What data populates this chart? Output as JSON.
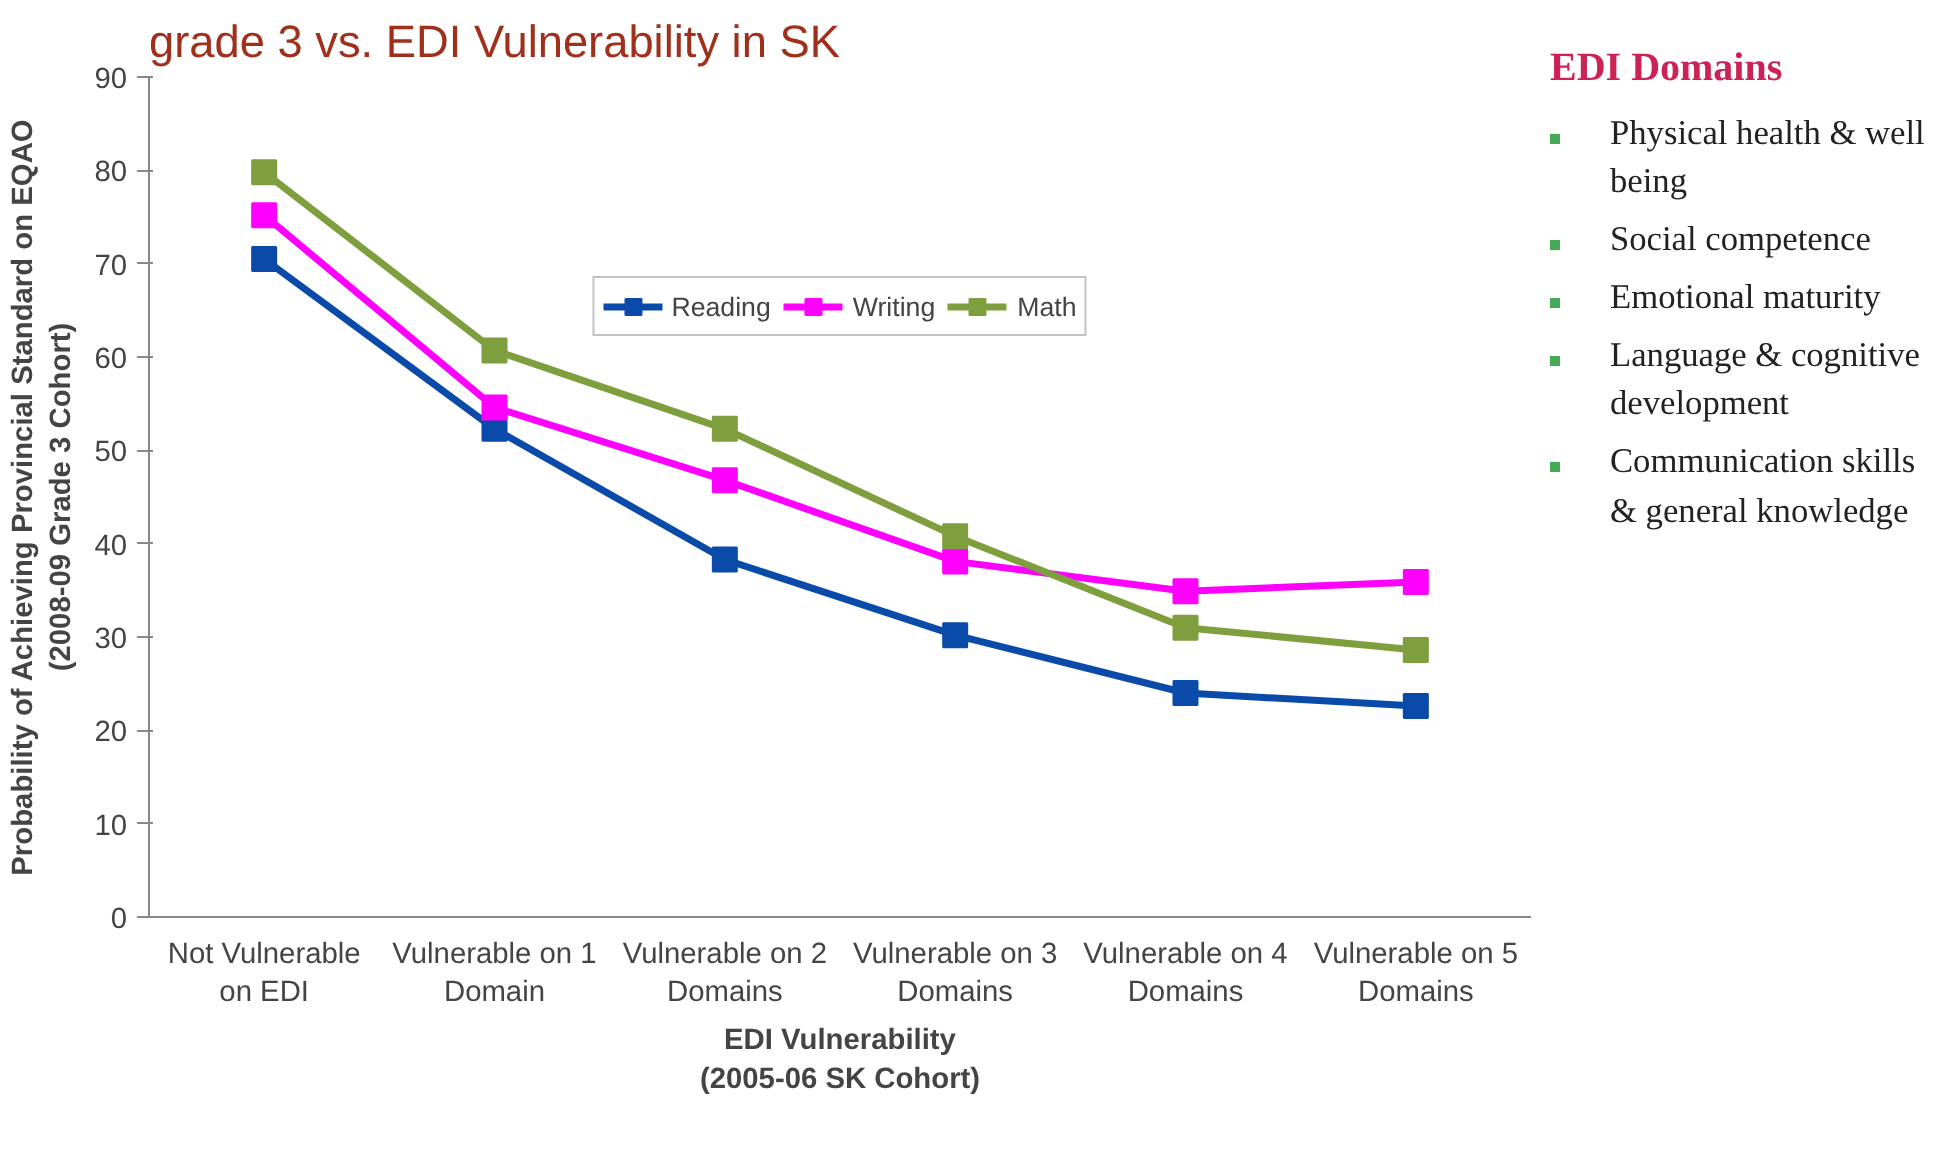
{
  "chart_data": {
    "type": "line",
    "title": "grade 3 vs. EDI Vulnerability in SK",
    "xlabel": "EDI Vulnerability (2005-06 SK Cohort)",
    "ylabel": "Probability of Achieving Provincial Standard on EQAO (2008-09 Grade 3 Cohort)",
    "categories": [
      "Not Vulnerable on EDI",
      "Vulnerable on 1 Domain",
      "Vulnerable on 2 Domains",
      "Vulnerable on 3 Domains",
      "Vulnerable on 4 Domains",
      "Vulnerable on 5 Domains"
    ],
    "series": [
      {
        "name": "Reading",
        "color": "#0a4aa8",
        "values": [
          70.5,
          52.3,
          38.3,
          30.2,
          24.0,
          22.6
        ]
      },
      {
        "name": "Writing",
        "color": "#ff00ff",
        "values": [
          75.2,
          54.6,
          46.8,
          38.1,
          34.9,
          35.9
        ]
      },
      {
        "name": "Math",
        "color": "#7f9f3f",
        "values": [
          79.8,
          60.7,
          52.3,
          40.8,
          31.0,
          28.6
        ]
      }
    ],
    "ylim": [
      0,
      90
    ],
    "yticks": [
      0,
      10,
      20,
      30,
      40,
      50,
      60,
      70,
      80,
      90
    ],
    "grid": false,
    "legend": "top",
    "marker": "square",
    "line_style": "solid",
    "annotations": [
      "EDI Domains",
      "Physical health & well being",
      "Social competence",
      "Emotional maturity",
      "Language & cognitive development",
      "Communication skills & general knowledge"
    ]
  }
}
